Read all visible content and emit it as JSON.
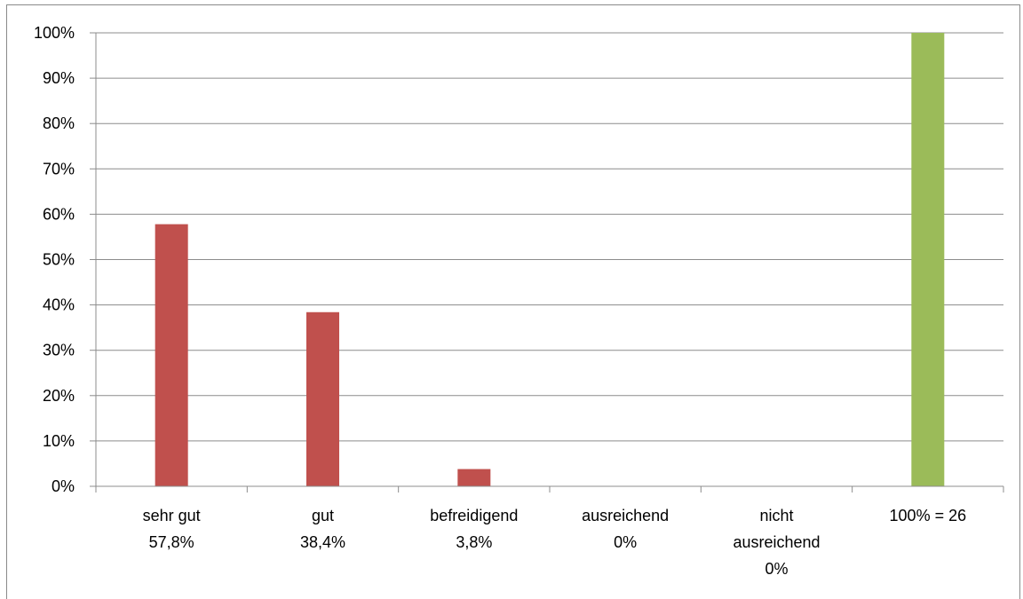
{
  "chart_data": {
    "type": "bar",
    "title": "",
    "xlabel": "",
    "ylabel": "",
    "ylim": [
      0,
      100
    ],
    "y_ticks": [
      "0%",
      "10%",
      "20%",
      "30%",
      "40%",
      "50%",
      "60%",
      "70%",
      "80%",
      "90%",
      "100%"
    ],
    "grid": true,
    "categories": [
      [
        "sehr gut",
        "57,8%"
      ],
      [
        "gut",
        "38,4%"
      ],
      [
        "befreidigend",
        "3,8%"
      ],
      [
        "ausreichend",
        "0%"
      ],
      [
        "nicht",
        "ausreichend",
        "0%"
      ],
      [
        "100% = 26"
      ]
    ],
    "values": [
      57.8,
      38.4,
      3.8,
      0,
      0,
      100
    ],
    "colors": [
      "#c0504d",
      "#c0504d",
      "#c0504d",
      "#c0504d",
      "#c0504d",
      "#9bbb59"
    ]
  }
}
